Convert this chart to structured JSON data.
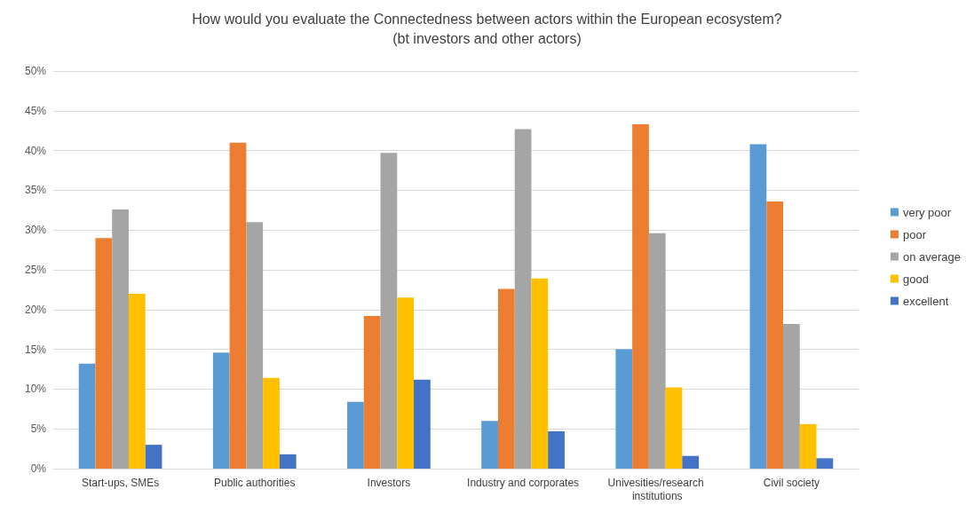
{
  "chart_data": {
    "type": "bar",
    "title": "How would you evaluate the Connectedness between actors within the European ecosystem?",
    "subtitle": "(bt investors and other actors)",
    "categories": [
      "Start-ups, SMEs",
      "Public authorities",
      "Investors",
      "Industry and corporates",
      "Univesities/research institutions",
      "Civil society"
    ],
    "series": [
      {
        "name": "very poor",
        "color": "#5b9bd5",
        "values": [
          13.2,
          14.6,
          8.4,
          6.0,
          15.0,
          40.8
        ]
      },
      {
        "name": "poor",
        "color": "#ed7d31",
        "values": [
          29.0,
          41.0,
          19.2,
          22.6,
          43.3,
          33.6
        ]
      },
      {
        "name": "on average",
        "color": "#a5a5a5",
        "values": [
          32.6,
          31.0,
          39.7,
          42.7,
          29.6,
          18.2
        ]
      },
      {
        "name": "good",
        "color": "#ffc000",
        "values": [
          22.0,
          11.4,
          21.5,
          23.9,
          10.2,
          5.6
        ]
      },
      {
        "name": "excellent",
        "color": "#4472c4",
        "values": [
          3.0,
          1.8,
          11.2,
          4.7,
          1.6,
          1.3
        ]
      }
    ],
    "ylim": [
      0,
      50
    ],
    "yticks": [
      {
        "value": 0,
        "label": "0%"
      },
      {
        "value": 5,
        "label": "5%"
      },
      {
        "value": 10,
        "label": "10%"
      },
      {
        "value": 15,
        "label": "15%"
      },
      {
        "value": 20,
        "label": "20%"
      },
      {
        "value": 25,
        "label": "25%"
      },
      {
        "value": 30,
        "label": "30%"
      },
      {
        "value": 35,
        "label": "35%"
      },
      {
        "value": 40,
        "label": "40%"
      },
      {
        "value": 45,
        "label": "45%"
      },
      {
        "value": 50,
        "label": "50%"
      }
    ],
    "grid": "y",
    "legend": "right"
  }
}
